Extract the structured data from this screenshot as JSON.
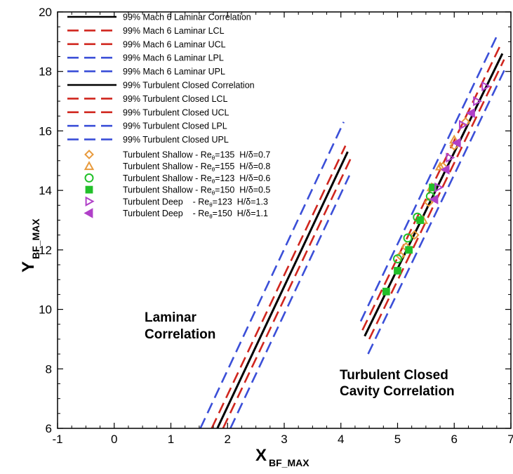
{
  "chart_data": {
    "type": "line",
    "xlabel": {
      "main": "X",
      "sub": "BF_MAX"
    },
    "ylabel": {
      "main": "Y",
      "sub": "BF_MAX"
    },
    "xlim": [
      -1,
      7
    ],
    "ylim": [
      6,
      20
    ],
    "xticks": [
      "-1",
      "0",
      "1",
      "2",
      "3",
      "4",
      "5",
      "6",
      "7"
    ],
    "yticks": [
      "6",
      "8",
      "10",
      "12",
      "14",
      "16",
      "18",
      "20"
    ],
    "grid": false,
    "legend_position": "top-left",
    "annotations": [
      {
        "lines": [
          "Laminar",
          "Correlation"
        ]
      },
      {
        "lines": [
          "Turbulent Closed",
          "Cavity Correlation"
        ]
      }
    ],
    "colors": {
      "correlation": "#000000",
      "confidence": "#d0261e",
      "prediction": "#3b4fd8",
      "orange": "#e89a3c",
      "green": "#22c02a",
      "purple": "#b040c8"
    },
    "line_series": [
      {
        "name": "99% Mach 6 Laminar Correlation",
        "color_key": "correlation",
        "dash": "solid",
        "x": [
          1.82,
          4.12
        ],
        "y": [
          6.0,
          15.3
        ]
      },
      {
        "name": "99% Mach 6 Laminar LCL",
        "color_key": "confidence",
        "dash": "dashed",
        "x": [
          1.92,
          4.18
        ],
        "y": [
          6.0,
          15.1
        ]
      },
      {
        "name": "99% Mach 6 Laminar UCL",
        "color_key": "confidence",
        "dash": "dashed",
        "x": [
          1.72,
          4.08
        ],
        "y": [
          6.0,
          15.5
        ]
      },
      {
        "name": "99% Mach 6 Laminar LPL",
        "color_key": "prediction",
        "dash": "dashed",
        "x": [
          2.05,
          4.15
        ],
        "y": [
          6.0,
          14.5
        ]
      },
      {
        "name": "99% Mach 6 Laminar UPL",
        "color_key": "prediction",
        "dash": "dashed",
        "x": [
          1.52,
          4.05
        ],
        "y": [
          6.0,
          16.3
        ]
      },
      {
        "name": "99% Turbulent Closed Correlation",
        "color_key": "correlation",
        "dash": "solid",
        "x": [
          4.42,
          6.85
        ],
        "y": [
          9.1,
          18.6
        ]
      },
      {
        "name": "99% Turbulent Closed LCL",
        "color_key": "confidence",
        "dash": "dashed",
        "x": [
          4.5,
          6.88
        ],
        "y": [
          9.0,
          18.4
        ]
      },
      {
        "name": "99% Turbulent Closed UCL",
        "color_key": "confidence",
        "dash": "dashed",
        "x": [
          4.38,
          6.82
        ],
        "y": [
          9.3,
          18.9
        ]
      },
      {
        "name": "99% Turbulent Closed LPL",
        "color_key": "prediction",
        "dash": "dashed",
        "x": [
          4.48,
          6.9
        ],
        "y": [
          8.5,
          18.1
        ]
      },
      {
        "name": "99% Turbulent Closed UPL",
        "color_key": "prediction",
        "dash": "dashed",
        "x": [
          4.35,
          6.78
        ],
        "y": [
          9.6,
          19.3
        ]
      }
    ],
    "scatter_series": [
      {
        "name": "Turbulent Shallow - Re_θ=135  H/δ=0.7",
        "legend_pre": "Turbulent Shallow - Re",
        "legend_sub": "θ",
        "legend_post": "=135  H/δ=0.7",
        "marker": "diamond",
        "filled": false,
        "color_key": "orange",
        "x": [
          5.05,
          5.15,
          5.3,
          5.55,
          5.8,
          6.0,
          6.2
        ],
        "y": [
          11.8,
          12.1,
          12.5,
          13.6,
          14.8,
          15.5,
          16.3
        ]
      },
      {
        "name": "Turbulent Shallow - Re_θ=155  H/δ=0.8",
        "legend_pre": "Turbulent Shallow - Re",
        "legend_sub": "θ",
        "legend_post": "=155  H/δ=0.8",
        "marker": "triangle-up",
        "filled": false,
        "color_key": "orange",
        "x": [
          5.45,
          5.6,
          5.75,
          6.0
        ],
        "y": [
          13.0,
          14.1,
          14.8,
          15.7
        ]
      },
      {
        "name": "Turbulent Shallow - Re_θ=123  H/δ=0.6",
        "legend_pre": "Turbulent Shallow - Re",
        "legend_sub": "θ",
        "legend_post": "=123  H/δ=0.6",
        "marker": "circle",
        "filled": false,
        "color_key": "green",
        "x": [
          5.0,
          5.18,
          5.35,
          5.58
        ],
        "y": [
          11.7,
          12.4,
          13.1,
          13.8
        ]
      },
      {
        "name": "Turbulent Shallow - Re_θ=150  H/δ=0.5",
        "legend_pre": "Turbulent Shallow - Re",
        "legend_sub": "θ",
        "legend_post": "=150  H/δ=0.5",
        "marker": "square",
        "filled": true,
        "color_key": "green",
        "x": [
          4.8,
          5.0,
          5.2,
          5.4,
          5.62
        ],
        "y": [
          10.6,
          11.3,
          12.0,
          13.0,
          14.1
        ]
      },
      {
        "name": "Turbulent Deep    - Re_θ=123  H/δ=1.3",
        "legend_pre": "Turbulent Deep    - Re",
        "legend_sub": "θ",
        "legend_post": "=123  H/δ=1.3",
        "marker": "triangle-right",
        "filled": false,
        "color_key": "purple",
        "x": [
          5.72,
          5.92,
          6.15,
          6.4,
          6.55
        ],
        "y": [
          14.1,
          15.1,
          16.2,
          17.0,
          17.5
        ]
      },
      {
        "name": "Turbulent Deep    - Re_θ=150  H/δ=1.1",
        "legend_pre": "Turbulent Deep    - Re",
        "legend_sub": "θ",
        "legend_post": "=150  H/δ=1.1",
        "marker": "triangle-left",
        "filled": true,
        "color_key": "purple",
        "x": [
          5.65,
          5.85,
          6.05,
          6.3
        ],
        "y": [
          13.7,
          14.7,
          15.6,
          16.6
        ]
      }
    ]
  }
}
